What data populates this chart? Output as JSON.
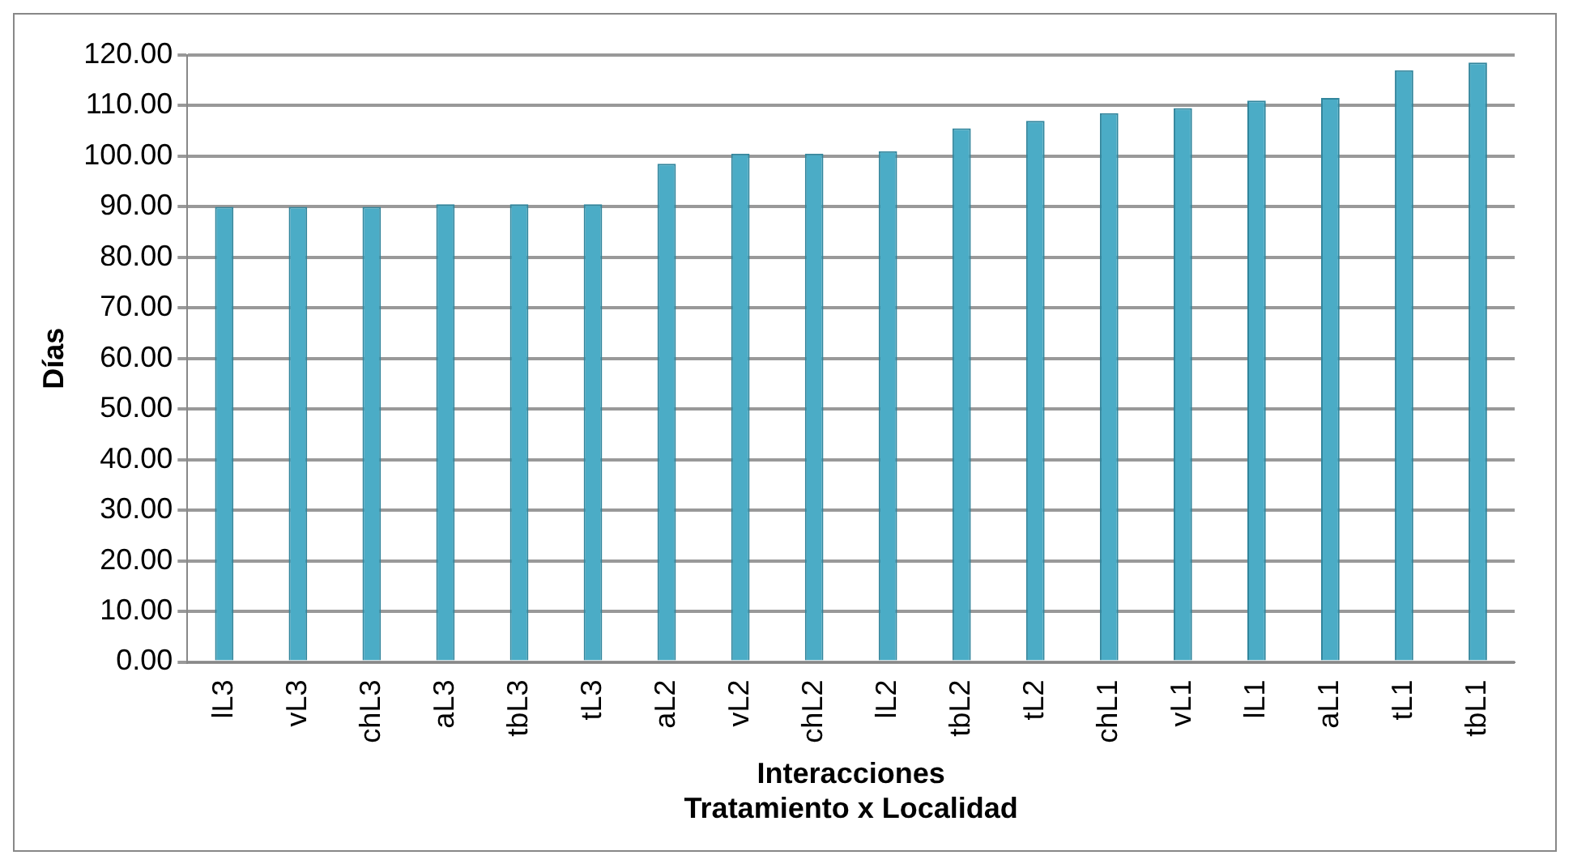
{
  "chart_data": {
    "type": "bar",
    "categories": [
      "lL3",
      "vL3",
      "chL3",
      "aL3",
      "tbL3",
      "tL3",
      "aL2",
      "vL2",
      "chL2",
      "lL2",
      "tbL2",
      "tL2",
      "chL1",
      "vL1",
      "lL1",
      "aL1",
      "tL1",
      "tbL1"
    ],
    "values": [
      90,
      90,
      90,
      90.5,
      90.5,
      90.5,
      98.5,
      100.5,
      100.5,
      101,
      105.5,
      107,
      108.5,
      109.5,
      111,
      111.5,
      117,
      118.5
    ],
    "color": "#4bacc6",
    "ylim": [
      0,
      120
    ],
    "yticks": [
      {
        "value": 0,
        "label": "0.00"
      },
      {
        "value": 10,
        "label": "10.00"
      },
      {
        "value": 20,
        "label": "20.00"
      },
      {
        "value": 30,
        "label": "30.00"
      },
      {
        "value": 40,
        "label": "40.00"
      },
      {
        "value": 50,
        "label": "50.00"
      },
      {
        "value": 60,
        "label": "60.00"
      },
      {
        "value": 70,
        "label": "70.00"
      },
      {
        "value": 80,
        "label": "80.00"
      },
      {
        "value": 90,
        "label": "90.00"
      },
      {
        "value": 100,
        "label": "100.00"
      },
      {
        "value": 110,
        "label": "110.00"
      },
      {
        "value": 120,
        "label": "120.00"
      }
    ],
    "ylabel": "Días",
    "xlabel": "Interacciones\nTratamiento x Localidad",
    "grid": "y",
    "legend": false
  }
}
